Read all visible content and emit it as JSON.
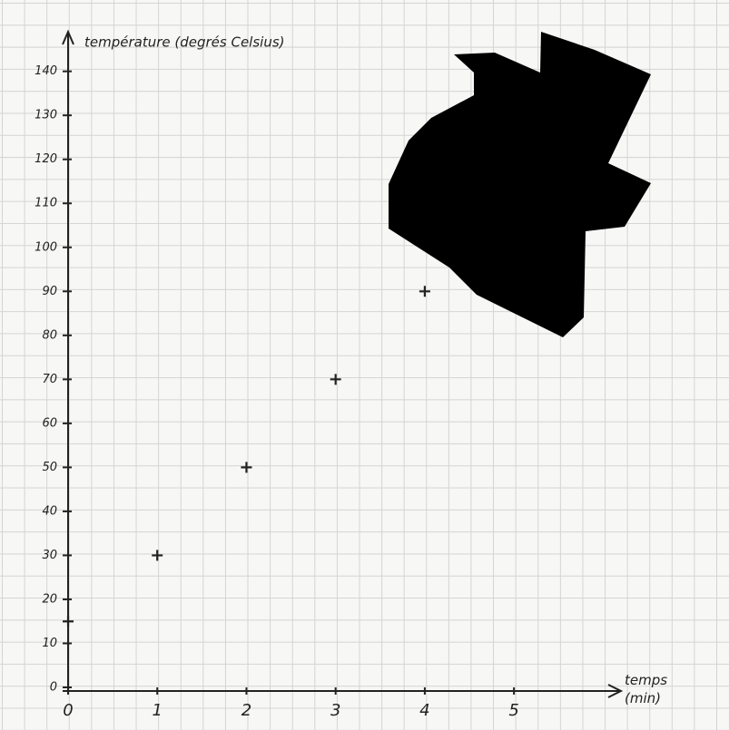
{
  "chart_data": {
    "type": "scatter",
    "ylabel": "température (degrés Celsius)",
    "xlabel": "temps (min)",
    "x": [
      0,
      1,
      2,
      3,
      4
    ],
    "values": [
      15,
      30,
      50,
      70,
      90
    ],
    "color": "#222222",
    "xlim": [
      0,
      6.2
    ],
    "ylim": [
      0,
      149
    ],
    "xticks": [
      0,
      1,
      2,
      3,
      4,
      5
    ],
    "yticks": [
      0,
      10,
      20,
      30,
      40,
      50,
      60,
      70,
      80,
      90,
      100,
      110,
      120,
      130,
      140
    ]
  }
}
